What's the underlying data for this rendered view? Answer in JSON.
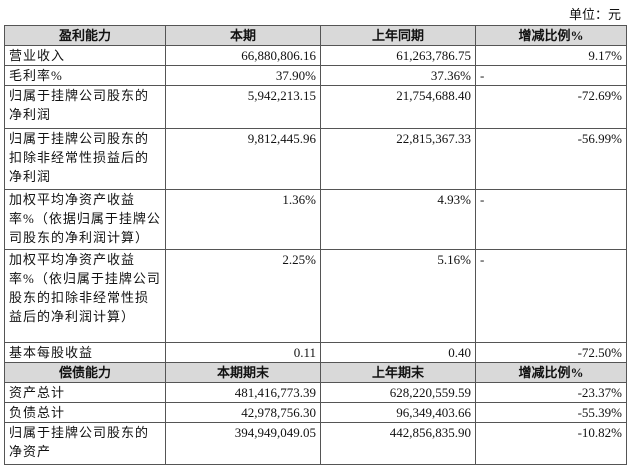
{
  "unit": "单位：元",
  "sections": [
    {
      "header": [
        "盈利能力",
        "本期",
        "上年同期",
        "增减比例%"
      ],
      "rows": [
        {
          "label": [
            "营业收入"
          ],
          "cells": [
            "66,880,806.16",
            "61,263,786.75",
            "9.17%"
          ]
        },
        {
          "label": [
            "毛利率%"
          ],
          "cells": [
            "37.90%",
            "37.36%",
            "-"
          ]
        },
        {
          "label": [
            "归属于挂牌公司股东的",
            "净利润"
          ],
          "cells": [
            "5,942,213.15",
            "21,754,688.40",
            "-72.69%"
          ]
        },
        {
          "label": [
            "归属于挂牌公司股东的",
            "扣除非经常性损益后的",
            "净利润"
          ],
          "cells": [
            "9,812,445.96",
            "22,815,367.33",
            "-56.99%"
          ]
        },
        {
          "label": [
            "加权平均净资产收益",
            "率%（依据归属于挂牌公",
            "司股东的净利润计算）"
          ],
          "cells": [
            "1.36%",
            "4.93%",
            "-"
          ]
        },
        {
          "label": [
            "加权平均净资产收益",
            "率%（依归属于挂牌公司",
            "股东的扣除非经常性损",
            "益后的净利润计算）"
          ],
          "cells": [
            "2.25%",
            "5.16%",
            "-"
          ]
        },
        {
          "label": [
            "基本每股收益"
          ],
          "cells": [
            "0.11",
            "0.40",
            "-72.50%"
          ]
        }
      ]
    },
    {
      "header": [
        "偿债能力",
        "本期期末",
        "上年期末",
        "增减比例%"
      ],
      "rows": [
        {
          "label": [
            "资产总计"
          ],
          "cells": [
            "481,416,773.39",
            "628,220,559.59",
            "-23.37%"
          ]
        },
        {
          "label": [
            "负债总计"
          ],
          "cells": [
            "42,978,756.30",
            "96,349,403.66",
            "-55.39%"
          ]
        },
        {
          "label": [
            "归属于挂牌公司股东的",
            "净资产"
          ],
          "cells": [
            "394,949,049.05",
            "442,856,835.90",
            "-10.82%"
          ]
        }
      ]
    }
  ]
}
